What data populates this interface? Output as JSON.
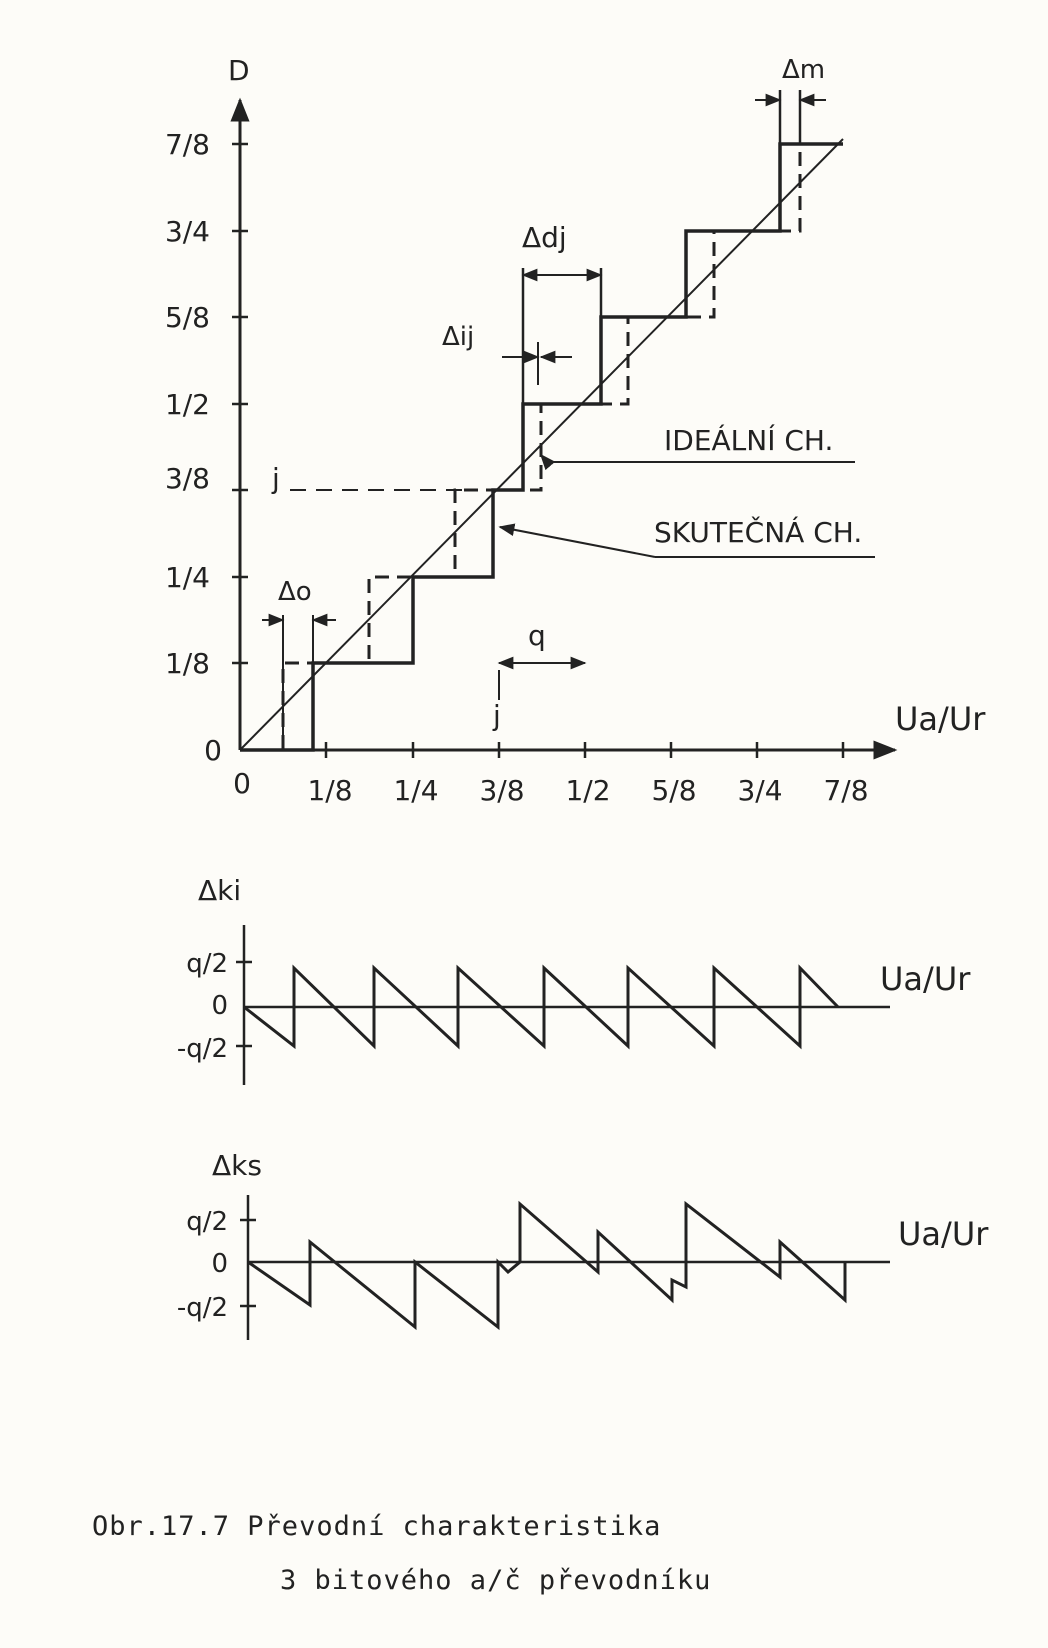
{
  "main": {
    "y_label": "D",
    "x_label": "Ua/Ur",
    "y_ticks": [
      "0",
      "1/8",
      "1/4",
      "3/8",
      "1/2",
      "5/8",
      "3/4",
      "7/8"
    ],
    "x_ticks": [
      "0",
      "1/8",
      "1/4",
      "3/8",
      "1/2",
      "5/8",
      "3/4",
      "7/8"
    ],
    "code_label_left": "j",
    "code_label_bottom": "j",
    "delta_o": "Δo",
    "delta_ij": "Δij",
    "delta_dj": "Δdj",
    "delta_m": "Δm",
    "q_label": "q",
    "ideal_label": "IDEÁLNÍ CH.",
    "real_label": "SKUTEČNÁ CH."
  },
  "plot_ki": {
    "y_label": "Δki",
    "x_label": "Ua/Ur",
    "y_ticks": [
      "q/2",
      "0",
      "-q/2"
    ]
  },
  "plot_ks": {
    "y_label": "Δks",
    "x_label": "Ua/Ur",
    "y_ticks": [
      "q/2",
      "0",
      "-q/2"
    ]
  },
  "caption": {
    "line1": "Obr.17.7 Převodní charakteristika",
    "line2": "3 bitového a/č převodníku"
  }
}
